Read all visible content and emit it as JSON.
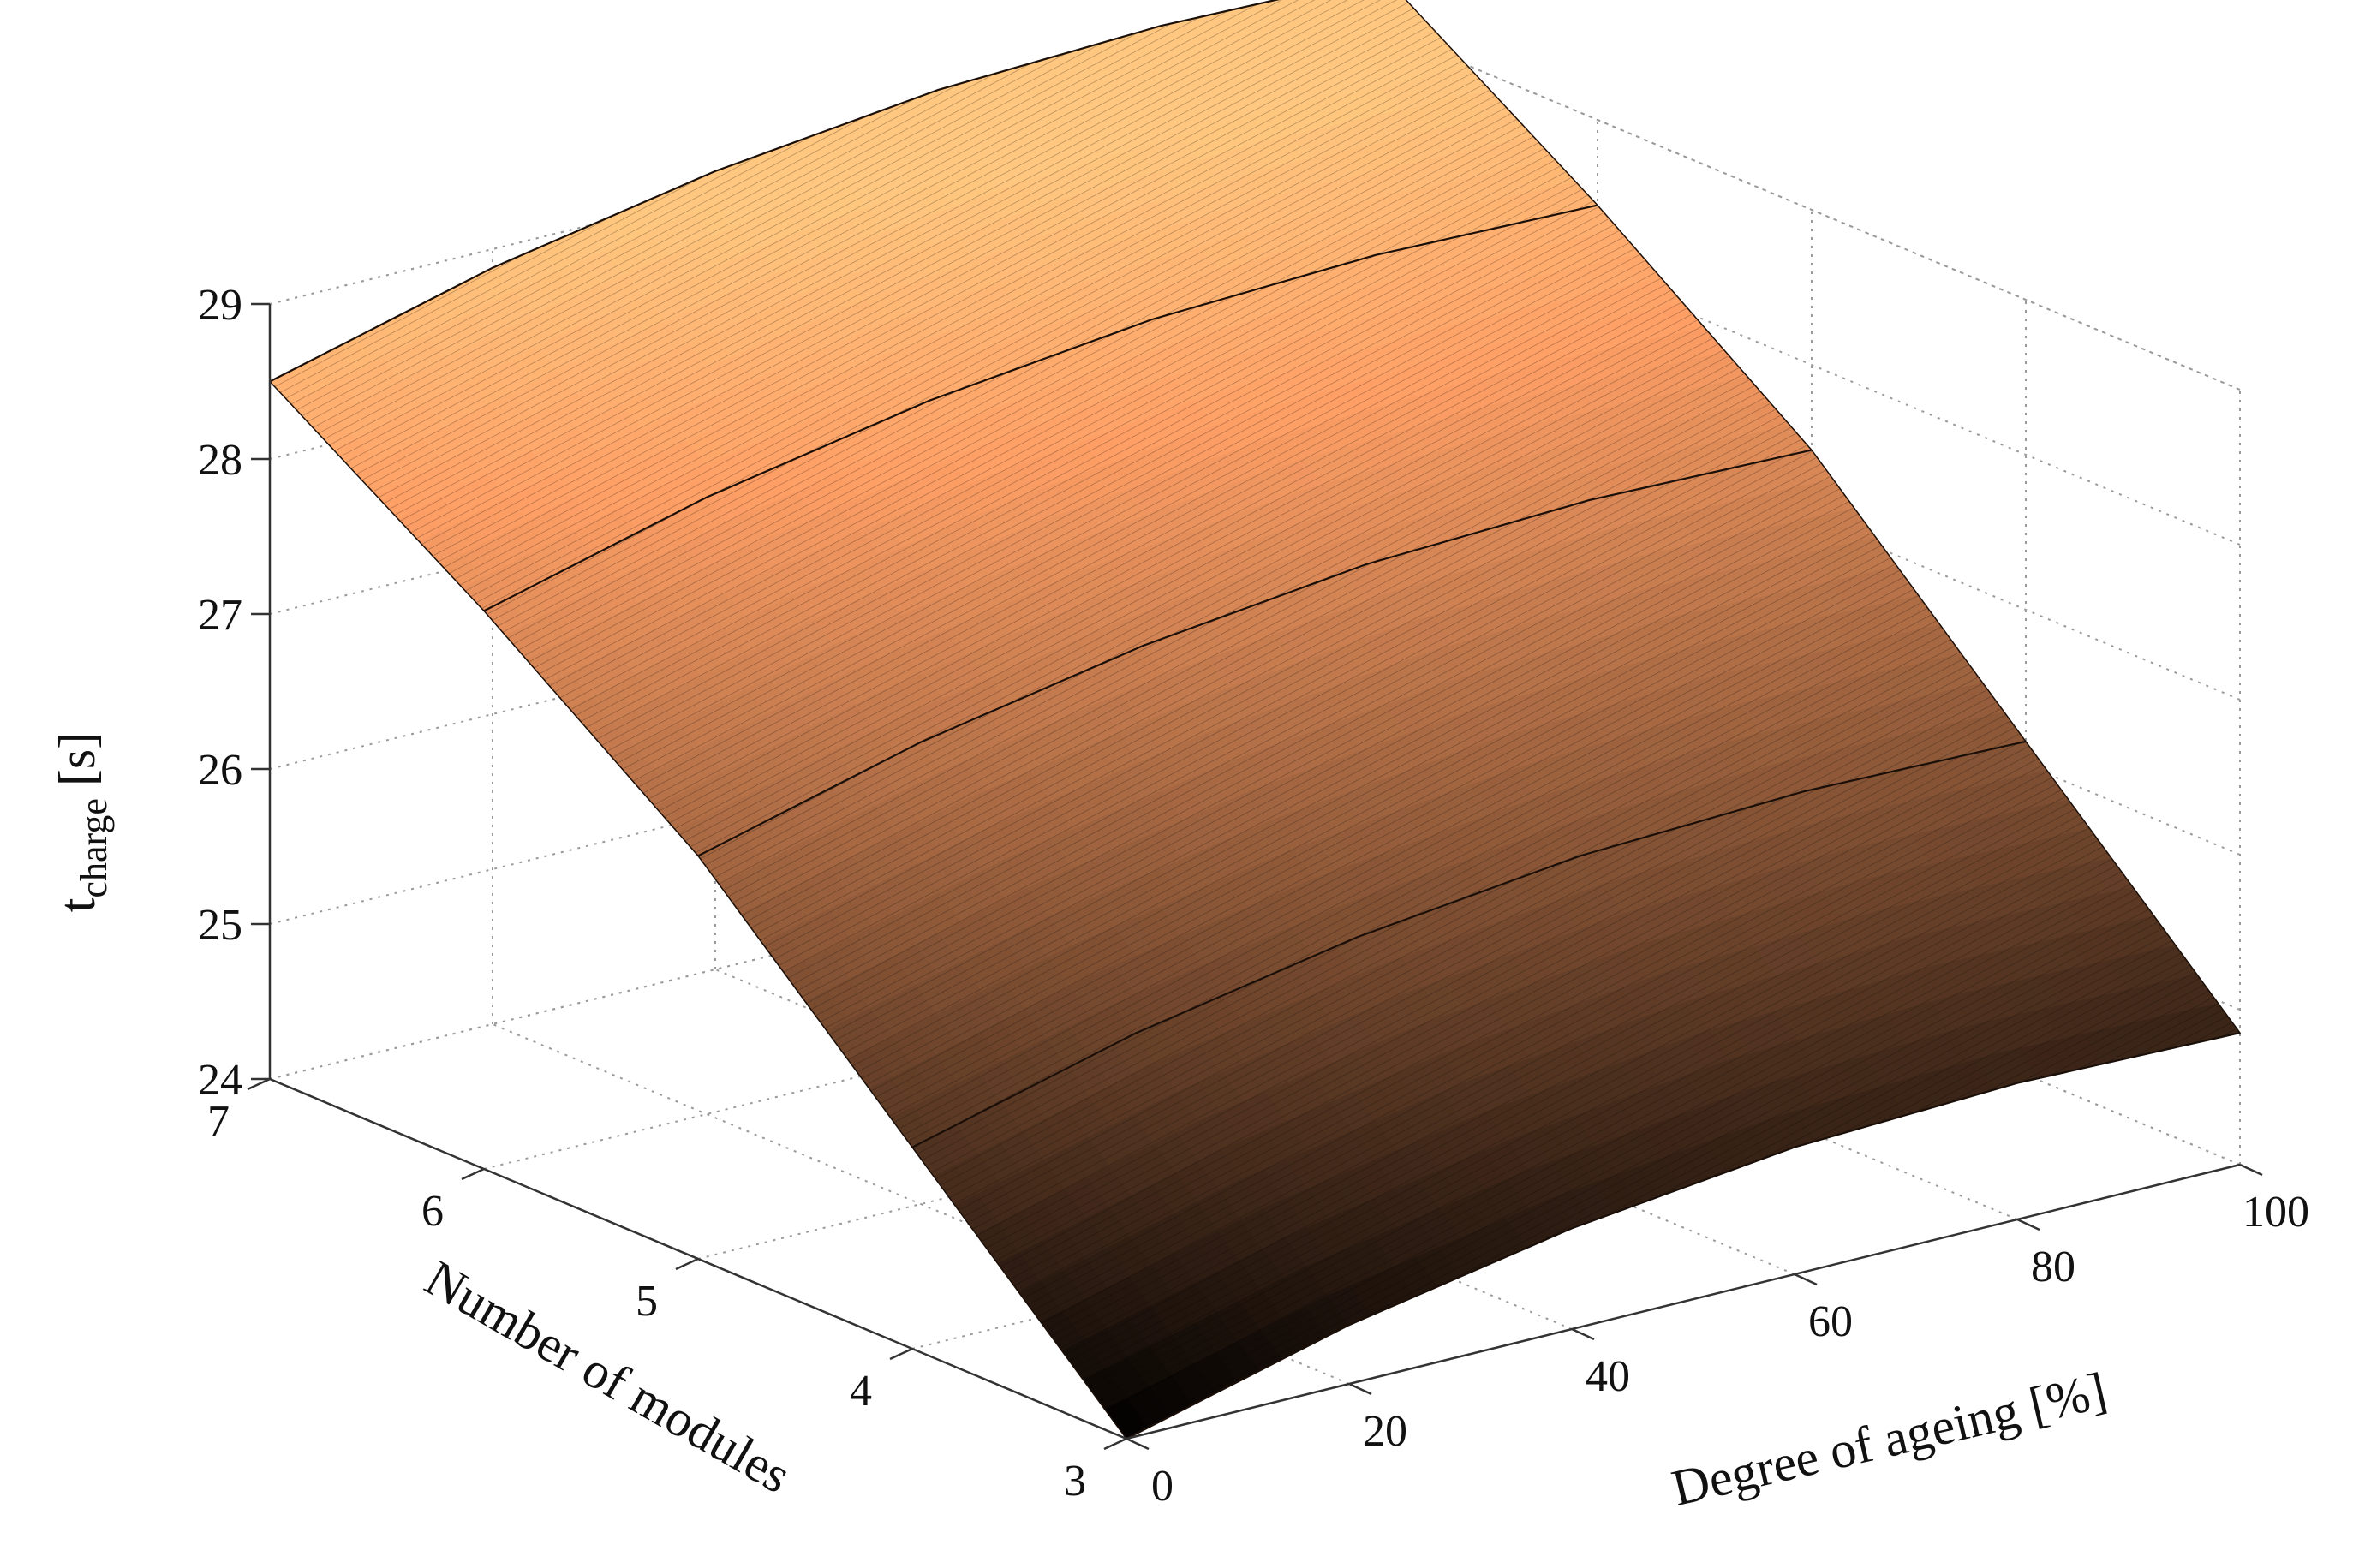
{
  "chart_data": {
    "type": "surface",
    "zlabel_main": "t",
    "zlabel_sub": "charge",
    "zlabel_unit": "[s]",
    "xlabel": "Degree of ageing [%]",
    "ylabel": "Number of modules",
    "x_ticks": [
      "0",
      "20",
      "40",
      "60",
      "80",
      "100"
    ],
    "y_ticks": [
      "3",
      "4",
      "5",
      "6",
      "7"
    ],
    "z_ticks": [
      "24",
      "25",
      "26",
      "27",
      "28",
      "29"
    ],
    "xlim": [
      0,
      100
    ],
    "ylim": [
      3,
      7
    ],
    "zlim": [
      24,
      29
    ],
    "grid": true,
    "colormap": "copper",
    "surface_points": [
      {
        "x": 0,
        "y": 3,
        "z": 24.0
      },
      {
        "x": 0,
        "y": 4,
        "z": 25.3
      },
      {
        "x": 0,
        "y": 5,
        "z": 26.6
      },
      {
        "x": 0,
        "y": 6,
        "z": 27.6
      },
      {
        "x": 0,
        "y": 7,
        "z": 28.5
      },
      {
        "x": 20,
        "y": 3,
        "z": 24.38
      },
      {
        "x": 20,
        "y": 4,
        "z": 25.68
      },
      {
        "x": 20,
        "y": 5,
        "z": 26.98
      },
      {
        "x": 20,
        "y": 6,
        "z": 27.98
      },
      {
        "x": 20,
        "y": 7,
        "z": 28.88
      },
      {
        "x": 40,
        "y": 3,
        "z": 24.65
      },
      {
        "x": 40,
        "y": 4,
        "z": 25.95
      },
      {
        "x": 40,
        "y": 5,
        "z": 27.25
      },
      {
        "x": 40,
        "y": 6,
        "z": 28.25
      },
      {
        "x": 40,
        "y": 7,
        "z": 29.15
      },
      {
        "x": 60,
        "y": 3,
        "z": 24.82
      },
      {
        "x": 60,
        "y": 4,
        "z": 26.12
      },
      {
        "x": 60,
        "y": 5,
        "z": 27.42
      },
      {
        "x": 60,
        "y": 6,
        "z": 28.42
      },
      {
        "x": 60,
        "y": 7,
        "z": 29.32
      },
      {
        "x": 80,
        "y": 3,
        "z": 24.88
      },
      {
        "x": 80,
        "y": 4,
        "z": 26.18
      },
      {
        "x": 80,
        "y": 5,
        "z": 27.48
      },
      {
        "x": 80,
        "y": 6,
        "z": 28.48
      },
      {
        "x": 80,
        "y": 7,
        "z": 29.38
      },
      {
        "x": 100,
        "y": 3,
        "z": 24.85
      },
      {
        "x": 100,
        "y": 4,
        "z": 26.15
      },
      {
        "x": 100,
        "y": 5,
        "z": 27.45
      },
      {
        "x": 100,
        "y": 6,
        "z": 28.45
      },
      {
        "x": 100,
        "y": 7,
        "z": 29.35
      }
    ],
    "colors": {
      "copper_low": "#000000",
      "copper_high": "#ffc77f",
      "mesh_line": "#1a0f08",
      "grid": "#9a9a9a",
      "axis": "#333333"
    }
  }
}
